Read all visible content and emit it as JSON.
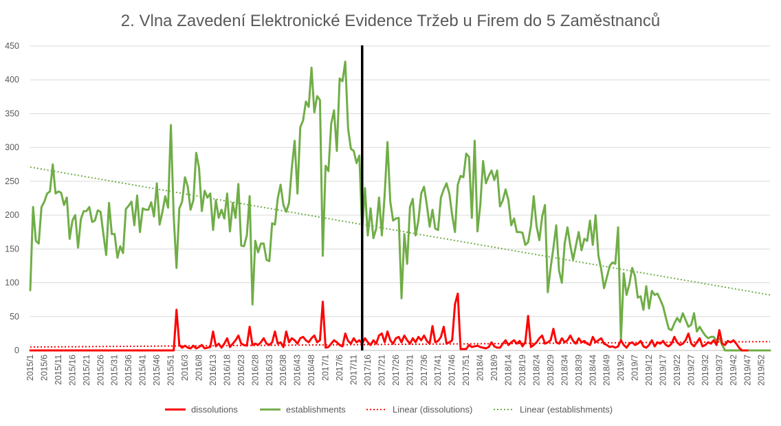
{
  "chart_data": {
    "type": "line",
    "title": "2. Vlna Zavedení Elektronické Evidence Tržeb u Firem do 5 Zaměstnanců",
    "xlabel": "",
    "ylabel": "",
    "ylim": [
      0,
      450
    ],
    "y_ticks": [
      "0",
      "50",
      "100",
      "150",
      "200",
      "250",
      "300",
      "350",
      "400",
      "450"
    ],
    "x_ticks": [
      "2015/1",
      "2015/6",
      "2015/11",
      "2015/16",
      "2015/21",
      "2015/26",
      "2015/31",
      "2015/36",
      "2015/41",
      "2015/46",
      "2015/51",
      "2016/3",
      "2016/8",
      "2016/13",
      "2016/18",
      "2016/23",
      "2016/28",
      "2016/33",
      "2016/38",
      "2016/43",
      "2016/48",
      "2017/1",
      "2017/6",
      "2017/11",
      "2017/16",
      "2017/21",
      "2017/26",
      "2017/31",
      "2017/36",
      "2017/41",
      "2017/46",
      "2017/51",
      "2018/4",
      "2018/9",
      "2018/14",
      "2018/19",
      "2018/24",
      "2018/29",
      "2018/34",
      "2018/39",
      "2018/44",
      "2018/49",
      "2019/2",
      "2019/7",
      "2019/12",
      "2019/17",
      "2019/22",
      "2019/27",
      "2019/32",
      "2019/37",
      "2019/42",
      "2019/47",
      "2019/52"
    ],
    "grid": true,
    "legend_position": "bottom",
    "vertical_marker_category": "2017/14",
    "colors": {
      "dissolutions": "#ff0000",
      "establishments": "#70ad47",
      "marker": "#000000",
      "grid": "#d9d9d9",
      "axis": "#bfbfbf"
    },
    "legend": [
      {
        "label": "dissolutions",
        "style": "solid",
        "color": "#ff0000"
      },
      {
        "label": "establishments",
        "style": "solid",
        "color": "#70ad47"
      },
      {
        "label": "Linear (dissolutions)",
        "style": "dotted",
        "color": "#ff0000"
      },
      {
        "label": "Linear (establishments)",
        "style": "dotted",
        "color": "#70ad47"
      }
    ],
    "trend_dissolutions": [
      5,
      13
    ],
    "trend_establishments": [
      271,
      82
    ],
    "series": [
      {
        "name": "dissolutions",
        "values": [
          0,
          0,
          0,
          0,
          0,
          0,
          0,
          0,
          0,
          0,
          0,
          0,
          0,
          0,
          0,
          0,
          0,
          0,
          0,
          0,
          0,
          0,
          0,
          0,
          0,
          0,
          0,
          0,
          0,
          0,
          0,
          0,
          0,
          0,
          0,
          0,
          0,
          0,
          0,
          0,
          0,
          0,
          0,
          0,
          0,
          0,
          0,
          0,
          0,
          0,
          0,
          0,
          60,
          8,
          4,
          7,
          4,
          3,
          7,
          3,
          5,
          8,
          3,
          4,
          5,
          28,
          6,
          10,
          4,
          10,
          18,
          5,
          10,
          15,
          22,
          10,
          8,
          7,
          35,
          8,
          10,
          8,
          12,
          18,
          10,
          8,
          12,
          28,
          10,
          12,
          5,
          28,
          12,
          18,
          15,
          10,
          18,
          20,
          15,
          12,
          18,
          22,
          12,
          15,
          72,
          4,
          5,
          10,
          15,
          12,
          8,
          6,
          25,
          14,
          10,
          18,
          12,
          15,
          10,
          18,
          12,
          8,
          15,
          10,
          22,
          25,
          12,
          28,
          15,
          10,
          18,
          20,
          12,
          22,
          15,
          10,
          18,
          12,
          20,
          15,
          22,
          14,
          10,
          36,
          12,
          14,
          20,
          35,
          10,
          12,
          15,
          68,
          84,
          2,
          2,
          2,
          8,
          5,
          6,
          7,
          5,
          4,
          3,
          5,
          12,
          6,
          4,
          4,
          10,
          15,
          8,
          12,
          15,
          10,
          14,
          6,
          12,
          51,
          5,
          8,
          12,
          18,
          22,
          10,
          12,
          15,
          32,
          12,
          10,
          18,
          12,
          15,
          22,
          14,
          10,
          18,
          12,
          14,
          10,
          8,
          20,
          12,
          15,
          18,
          10,
          8,
          5,
          6,
          4,
          6,
          15,
          8,
          4,
          10,
          12,
          8,
          10,
          14,
          6,
          4,
          8,
          15,
          6,
          12,
          10,
          14,
          8,
          6,
          10,
          20,
          12,
          8,
          10,
          15,
          25,
          10,
          6,
          12,
          18,
          6,
          8,
          12,
          10,
          15,
          8,
          30,
          10,
          8,
          14,
          12,
          15,
          10,
          4,
          0,
          0,
          0
        ]
      },
      {
        "name": "establishments",
        "values": [
          89,
          212,
          162,
          158,
          212,
          220,
          232,
          235,
          275,
          232,
          235,
          233,
          215,
          226,
          165,
          192,
          200,
          152,
          194,
          206,
          206,
          212,
          190,
          192,
          207,
          205,
          172,
          141,
          218,
          172,
          172,
          137,
          154,
          144,
          209,
          214,
          220,
          185,
          229,
          175,
          210,
          208,
          208,
          219,
          198,
          247,
          186,
          205,
          228,
          211,
          333,
          198,
          122,
          210,
          220,
          256,
          242,
          208,
          222,
          292,
          270,
          206,
          236,
          226,
          232,
          178,
          222,
          196,
          208,
          195,
          232,
          176,
          218,
          196,
          246,
          155,
          154,
          170,
          228,
          68,
          162,
          145,
          158,
          158,
          134,
          132,
          188,
          186,
          225,
          245,
          215,
          205,
          218,
          270,
          310,
          232,
          330,
          340,
          368,
          360,
          418,
          352,
          376,
          370,
          140,
          273,
          265,
          335,
          355,
          295,
          402,
          398,
          427,
          328,
          298,
          295,
          277,
          288,
          177,
          240,
          170,
          210,
          166,
          180,
          226,
          170,
          230,
          308,
          220,
          192,
          195,
          196,
          77,
          172,
          128,
          212,
          224,
          170,
          192,
          232,
          242,
          215,
          183,
          208,
          180,
          178,
          226,
          238,
          247,
          232,
          200,
          175,
          245,
          258,
          256,
          291,
          286,
          196,
          310,
          176,
          215,
          280,
          247,
          258,
          266,
          252,
          266,
          213,
          222,
          238,
          222,
          185,
          195,
          175,
          175,
          174,
          156,
          160,
          184,
          228,
          184,
          163,
          198,
          215,
          86,
          122,
          152,
          185,
          118,
          100,
          158,
          182,
          155,
          134,
          155,
          175,
          148,
          165,
          162,
          192,
          156,
          200,
          140,
          120,
          92,
          108,
          125,
          130,
          128,
          182,
          15,
          114,
          82,
          98,
          122,
          110,
          78,
          80,
          60,
          95,
          62,
          88,
          82,
          84,
          75,
          65,
          48,
          32,
          30,
          40,
          48,
          42,
          55,
          45,
          35,
          38,
          55,
          28,
          35,
          28,
          22,
          18,
          20,
          20,
          14,
          18,
          8,
          0,
          0,
          0,
          0,
          0,
          0,
          0,
          0,
          0,
          0,
          0,
          0,
          0,
          0,
          0,
          0,
          0
        ]
      }
    ]
  }
}
